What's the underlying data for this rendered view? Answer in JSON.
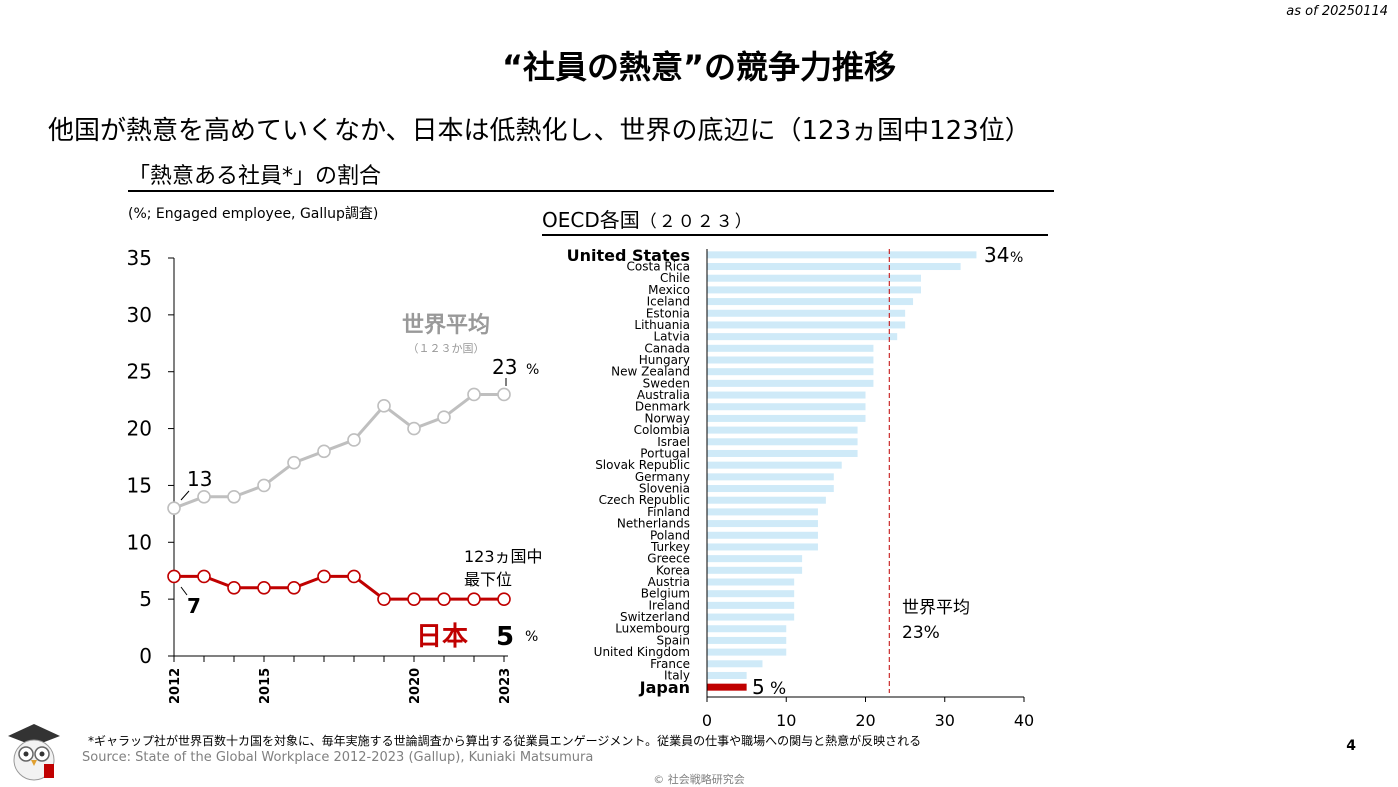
{
  "header": {
    "as_of": "as of 20250114",
    "title": "“社員の熱意”の競争力推移",
    "subtitle": "他国が熱意を高めていくなか、日本は低熱化し、世界の底辺に（123ヵ国中123位）",
    "section_title": "「熱意ある社員*」の割合",
    "unit_note": "(%; Engaged employee, Gallup調査)"
  },
  "footer": {
    "footnote": "*ギャラップ社が世界百数十カ国を対象に、毎年実施する世論調査から算出する従業員エンゲージメント。従業員の仕事や職場への関与と熱意が反映される",
    "source": "Source: State of the Global Workplace 2012-2023 (Gallup), Kuniaki Matsumura",
    "copyright": "© 社会戦略研究会",
    "page_number": "4"
  },
  "chart_data": [
    {
      "type": "line",
      "x": [
        2012,
        2013,
        2014,
        2015,
        2016,
        2017,
        2018,
        2019,
        2020,
        2021,
        2022,
        2023
      ],
      "x_tick_labels": [
        "2012",
        "2015",
        "2020",
        "2023"
      ],
      "y_ticks": [
        "0",
        "5",
        "10",
        "15",
        "20",
        "25",
        "30",
        "35"
      ],
      "ylim": [
        0,
        35
      ],
      "series": [
        {
          "name": "世界平均",
          "sublabel": "（１２３か国）",
          "color": "#bfbfbf",
          "values": [
            13,
            14,
            14,
            15,
            17,
            18,
            19,
            22,
            20,
            21,
            23,
            23
          ]
        },
        {
          "name": "日本",
          "color": "#c00000",
          "values": [
            7,
            7,
            6,
            6,
            6,
            7,
            7,
            5,
            5,
            5,
            5,
            5
          ]
        }
      ],
      "annotations": {
        "world_start": "13",
        "world_end": "23",
        "world_end_unit": "%",
        "japan_start": "7",
        "japan_end": "5",
        "japan_end_unit": "%",
        "japan_rank_line1": "123ヵ国中",
        "japan_rank_line2": "最下位"
      }
    },
    {
      "type": "bar",
      "title": "OECD各国",
      "title_year": "（２０２３）",
      "orientation": "horizontal",
      "xlim": [
        0,
        40
      ],
      "x_ticks": [
        "0",
        "10",
        "20",
        "30",
        "40"
      ],
      "bar_color": "#cfeaf8",
      "highlight_color": "#c00000",
      "categories": [
        "United States",
        "Costa Rica",
        "Chile",
        "Mexico",
        "Iceland",
        "Estonia",
        "Lithuania",
        "Latvia",
        "Canada",
        "Hungary",
        "New Zealand",
        "Sweden",
        "Australia",
        "Denmark",
        "Norway",
        "Colombia",
        "Israel",
        "Portugal",
        "Slovak Republic",
        "Germany",
        "Slovenia",
        "Czech Republic",
        "Finland",
        "Netherlands",
        "Poland",
        "Turkey",
        "Greece",
        "Korea",
        "Austria",
        "Belgium",
        "Ireland",
        "Switzerland",
        "Luxembourg",
        "Spain",
        "United Kingdom",
        "France",
        "Italy",
        "Japan"
      ],
      "values": [
        34,
        32,
        27,
        27,
        26,
        25,
        25,
        24,
        21,
        21,
        21,
        21,
        20,
        20,
        20,
        19,
        19,
        19,
        17,
        16,
        16,
        15,
        14,
        14,
        14,
        14,
        12,
        12,
        11,
        11,
        11,
        11,
        10,
        10,
        10,
        7,
        5,
        5
      ],
      "reference_line": {
        "value": 23,
        "label": "世界平均",
        "value_label": "23%"
      },
      "value_labels": {
        "top": "34",
        "top_unit": "%",
        "japan": "5",
        "japan_unit": "%"
      }
    }
  ]
}
